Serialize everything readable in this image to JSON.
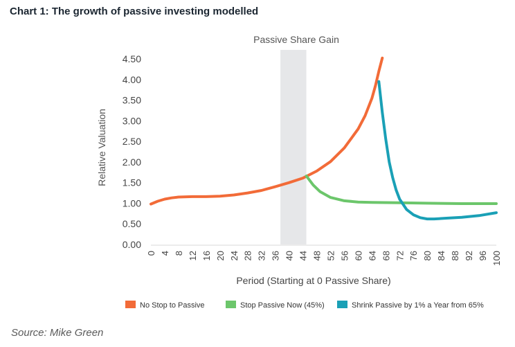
{
  "title": "Chart 1: The growth of passive investing modelled",
  "source": "Source: Mike Green",
  "chart_data": {
    "type": "line",
    "xlabel": "Period (Starting at 0 Passive Share)",
    "ylabel": "Relative Valuation",
    "xlim": [
      0,
      100
    ],
    "ylim": [
      0,
      4.5
    ],
    "x_ticks": [
      0,
      4,
      8,
      12,
      16,
      20,
      24,
      28,
      32,
      36,
      40,
      44,
      48,
      52,
      56,
      60,
      64,
      68,
      72,
      76,
      80,
      84,
      88,
      92,
      96,
      100
    ],
    "y_ticks": [
      "0.00",
      "0.50",
      "1.00",
      "1.50",
      "2.00",
      "2.50",
      "3.00",
      "3.50",
      "4.00",
      "4.50"
    ],
    "shaded_region": {
      "label": "Passive Share Gain",
      "x_range": [
        37.5,
        45
      ]
    },
    "legend_position": "bottom",
    "series": [
      {
        "name": "No Stop to Passive",
        "color": "#f26b38",
        "points": [
          [
            0,
            0.98
          ],
          [
            2,
            1.05
          ],
          [
            4,
            1.1
          ],
          [
            6,
            1.13
          ],
          [
            8,
            1.15
          ],
          [
            12,
            1.16
          ],
          [
            16,
            1.16
          ],
          [
            20,
            1.17
          ],
          [
            24,
            1.2
          ],
          [
            28,
            1.25
          ],
          [
            32,
            1.31
          ],
          [
            36,
            1.4
          ],
          [
            40,
            1.5
          ],
          [
            44,
            1.61
          ],
          [
            48,
            1.78
          ],
          [
            52,
            2.01
          ],
          [
            56,
            2.34
          ],
          [
            60,
            2.8
          ],
          [
            62,
            3.12
          ],
          [
            64,
            3.55
          ],
          [
            65,
            3.85
          ],
          [
            66,
            4.2
          ],
          [
            67,
            4.52
          ]
        ]
      },
      {
        "name": "Stop Passive Now (45%)",
        "color": "#6cc66b",
        "points": [
          [
            45,
            1.66
          ],
          [
            47,
            1.44
          ],
          [
            49,
            1.28
          ],
          [
            52,
            1.14
          ],
          [
            56,
            1.06
          ],
          [
            60,
            1.03
          ],
          [
            64,
            1.02
          ],
          [
            72,
            1.01
          ],
          [
            80,
            1.0
          ],
          [
            90,
            0.99
          ],
          [
            100,
            0.99
          ]
        ]
      },
      {
        "name": "Shrink Passive by 1% a Year from 65%",
        "color": "#1aa0b6",
        "points": [
          [
            66,
            3.95
          ],
          [
            67,
            3.2
          ],
          [
            68,
            2.55
          ],
          [
            69,
            2.0
          ],
          [
            70,
            1.62
          ],
          [
            71,
            1.32
          ],
          [
            72,
            1.1
          ],
          [
            74,
            0.85
          ],
          [
            76,
            0.72
          ],
          [
            78,
            0.65
          ],
          [
            80,
            0.62
          ],
          [
            82,
            0.62
          ],
          [
            86,
            0.64
          ],
          [
            90,
            0.66
          ],
          [
            95,
            0.7
          ],
          [
            100,
            0.77
          ]
        ]
      }
    ]
  }
}
